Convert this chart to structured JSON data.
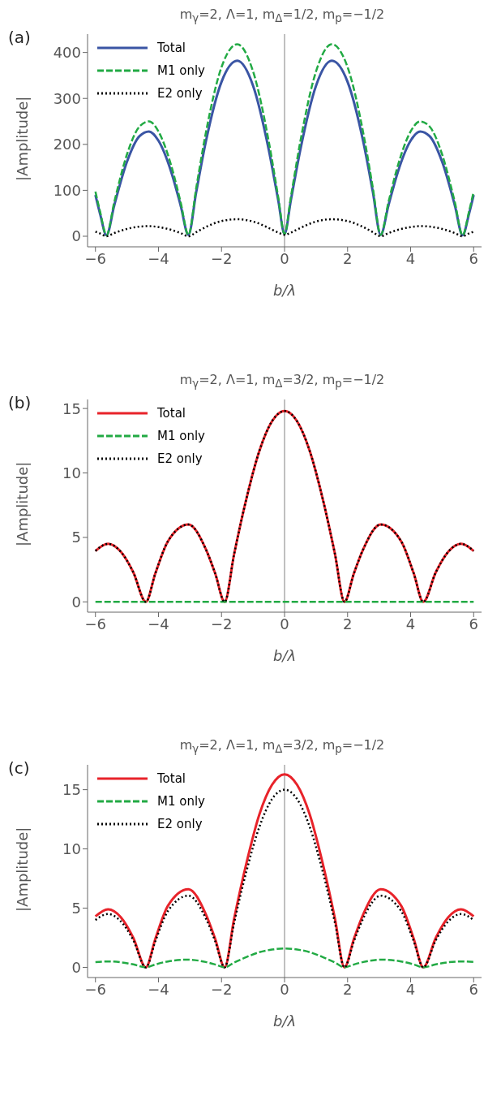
{
  "chart_data": [
    {
      "type": "line",
      "title": "m$_{γ}$=2, Λ=1, m$_{Δ}$=1/2, m$_{p}$=−1/2",
      "annotations": [
        "(a)"
      ],
      "xlabel": "b/λ",
      "ylabel": "|Amplitude|",
      "legend": "top left",
      "grid": false,
      "xlim": [
        -6.25,
        6.25
      ],
      "xticks": [
        -6,
        -4,
        -2,
        0,
        2,
        4,
        6
      ],
      "ylim": [
        -23,
        440
      ],
      "yticks": [
        0,
        100,
        200,
        300,
        400
      ],
      "ref_lines": [
        {
          "axis": "x",
          "value": 0,
          "color": "#808080"
        }
      ],
      "x": [
        -6,
        -5.85,
        -5.65,
        -5.4,
        -5,
        -4.6,
        -4.3,
        -4,
        -3.6,
        -3.3,
        -3.05,
        -2.8,
        -2.5,
        -2,
        -1.5,
        -1,
        -0.5,
        -0.2,
        0,
        0.2,
        0.5,
        1,
        1.5,
        2,
        2.5,
        2.8,
        3.05,
        3.3,
        3.6,
        4,
        4.3,
        4.6,
        5,
        5.4,
        5.65,
        5.85,
        6
      ],
      "series": [
        {
          "name": "Total",
          "color": "#3a55a4",
          "line_style": "solid",
          "values": [
            90,
            48,
            2,
            68,
            162,
            218,
            228,
            208,
            141,
            68,
            3,
            97,
            205,
            336,
            382,
            328,
            188,
            78,
            5,
            78,
            188,
            328,
            382,
            336,
            205,
            97,
            3,
            68,
            141,
            208,
            228,
            218,
            162,
            68,
            2,
            48,
            90
          ]
        },
        {
          "name": "M1 only",
          "color": "#22aa44",
          "line_style": "dashed",
          "values": [
            97,
            53,
            2,
            75,
            178,
            239,
            250,
            228,
            155,
            75,
            3,
            106,
            224,
            368,
            418,
            359,
            206,
            85,
            5,
            85,
            206,
            359,
            418,
            368,
            224,
            106,
            3,
            75,
            155,
            228,
            250,
            239,
            178,
            75,
            2,
            53,
            97
          ]
        },
        {
          "name": "E2 only",
          "color": "#000000",
          "line_style": "dotted",
          "values": [
            10,
            6,
            0,
            7,
            16,
            21,
            22,
            20,
            14,
            7,
            0,
            9,
            20,
            33,
            37,
            32,
            18,
            8,
            3,
            8,
            18,
            32,
            37,
            33,
            20,
            9,
            0,
            7,
            14,
            20,
            22,
            21,
            16,
            7,
            0,
            6,
            10
          ]
        }
      ]
    },
    {
      "type": "line",
      "title": "m$_{γ}$=2, Λ=1, m$_{Δ}$=3/2, m$_{p}$=−1/2",
      "annotations": [
        "(b)"
      ],
      "xlabel": "b/λ",
      "ylabel": "|Amplitude|",
      "legend": "top left",
      "grid": false,
      "xlim": [
        -6.25,
        6.25
      ],
      "xticks": [
        -6,
        -4,
        -2,
        0,
        2,
        4,
        6
      ],
      "ylim": [
        -0.8,
        15.7
      ],
      "yticks": [
        0,
        5,
        10,
        15
      ],
      "ref_lines": [
        {
          "axis": "x",
          "value": 0,
          "color": "#808080"
        }
      ],
      "x": [
        -6,
        -5.6,
        -5.2,
        -4.8,
        -4.4,
        -4.1,
        -3.7,
        -3.05,
        -2.5,
        -2.2,
        -1.9,
        -1.6,
        -1.2,
        -0.8,
        -0.4,
        0,
        0.4,
        0.8,
        1.2,
        1.6,
        1.9,
        2.2,
        2.5,
        3.05,
        3.7,
        4.1,
        4.4,
        4.8,
        5.2,
        5.6,
        6
      ],
      "series": [
        {
          "name": "Total",
          "color": "#e8232a",
          "line_style": "solid",
          "values": [
            3.95,
            4.5,
            3.9,
            2.3,
            0,
            2.2,
            4.7,
            6.0,
            4.1,
            2.2,
            0,
            3.7,
            8.1,
            11.7,
            14.0,
            14.8,
            14.0,
            11.7,
            8.1,
            3.7,
            0,
            2.2,
            4.1,
            6.0,
            4.7,
            2.2,
            0,
            2.3,
            3.9,
            4.5,
            3.95
          ]
        },
        {
          "name": "M1 only",
          "color": "#22aa44",
          "line_style": "dashed",
          "values": [
            0,
            0,
            0,
            0,
            0,
            0,
            0,
            0,
            0,
            0,
            0,
            0,
            0,
            0,
            0,
            0,
            0,
            0,
            0,
            0,
            0,
            0,
            0,
            0,
            0,
            0,
            0,
            0,
            0,
            0,
            0
          ]
        },
        {
          "name": "E2 only",
          "color": "#000000",
          "line_style": "dotted",
          "values": [
            3.95,
            4.5,
            3.9,
            2.3,
            0,
            2.2,
            4.7,
            6.0,
            4.1,
            2.2,
            0,
            3.7,
            8.1,
            11.7,
            14.0,
            14.8,
            14.0,
            11.7,
            8.1,
            3.7,
            0,
            2.2,
            4.1,
            6.0,
            4.7,
            2.2,
            0,
            2.3,
            3.9,
            4.5,
            3.95
          ]
        }
      ]
    },
    {
      "type": "line",
      "title": "m$_{γ}$=2, Λ=1, m$_{Δ}$=3/2, m$_{p}$=−1/2",
      "annotations": [
        "(c)"
      ],
      "xlabel": "b/λ",
      "ylabel": "|Amplitude|",
      "legend": "top left",
      "grid": false,
      "xlim": [
        -6.25,
        6.25
      ],
      "xticks": [
        -6,
        -4,
        -2,
        0,
        2,
        4,
        6
      ],
      "ylim": [
        -0.86,
        17.1
      ],
      "yticks": [
        0,
        5,
        10,
        15
      ],
      "ref_lines": [
        {
          "axis": "x",
          "value": 0,
          "color": "#808080"
        }
      ],
      "x": [
        -6,
        -5.6,
        -5.2,
        -4.8,
        -4.4,
        -4.1,
        -3.7,
        -3.05,
        -2.5,
        -2.2,
        -1.9,
        -1.6,
        -1.2,
        -0.8,
        -0.4,
        0,
        0.4,
        0.8,
        1.2,
        1.6,
        1.9,
        2.2,
        2.5,
        3.05,
        3.7,
        4.1,
        4.4,
        4.8,
        5.2,
        5.6,
        6
      ],
      "series": [
        {
          "name": "Total",
          "color": "#e8232a",
          "line_style": "solid",
          "values": [
            4.3,
            4.9,
            4.25,
            2.5,
            0,
            2.4,
            5.2,
            6.6,
            4.5,
            2.4,
            0,
            4.1,
            8.9,
            12.9,
            15.4,
            16.3,
            15.4,
            12.9,
            8.9,
            4.1,
            0,
            2.4,
            4.5,
            6.6,
            5.2,
            2.4,
            0,
            2.5,
            4.25,
            4.9,
            4.3
          ]
        },
        {
          "name": "M1 only",
          "color": "#22aa44",
          "line_style": "dashed",
          "values": [
            0.45,
            0.5,
            0.43,
            0.25,
            0,
            0.24,
            0.5,
            0.65,
            0.45,
            0.24,
            0,
            0.4,
            0.88,
            1.28,
            1.5,
            1.6,
            1.5,
            1.28,
            0.88,
            0.4,
            0,
            0.24,
            0.45,
            0.65,
            0.5,
            0.24,
            0,
            0.25,
            0.43,
            0.5,
            0.45
          ]
        },
        {
          "name": "E2 only",
          "color": "#000000",
          "line_style": "dotted",
          "values": [
            4.0,
            4.5,
            3.9,
            2.3,
            0,
            2.2,
            4.75,
            6.05,
            4.15,
            2.2,
            0,
            3.75,
            8.2,
            11.85,
            14.2,
            15.0,
            14.2,
            11.85,
            8.2,
            3.75,
            0,
            2.2,
            4.15,
            6.05,
            4.75,
            2.2,
            0,
            2.3,
            3.9,
            4.5,
            4.0
          ]
        }
      ]
    }
  ]
}
